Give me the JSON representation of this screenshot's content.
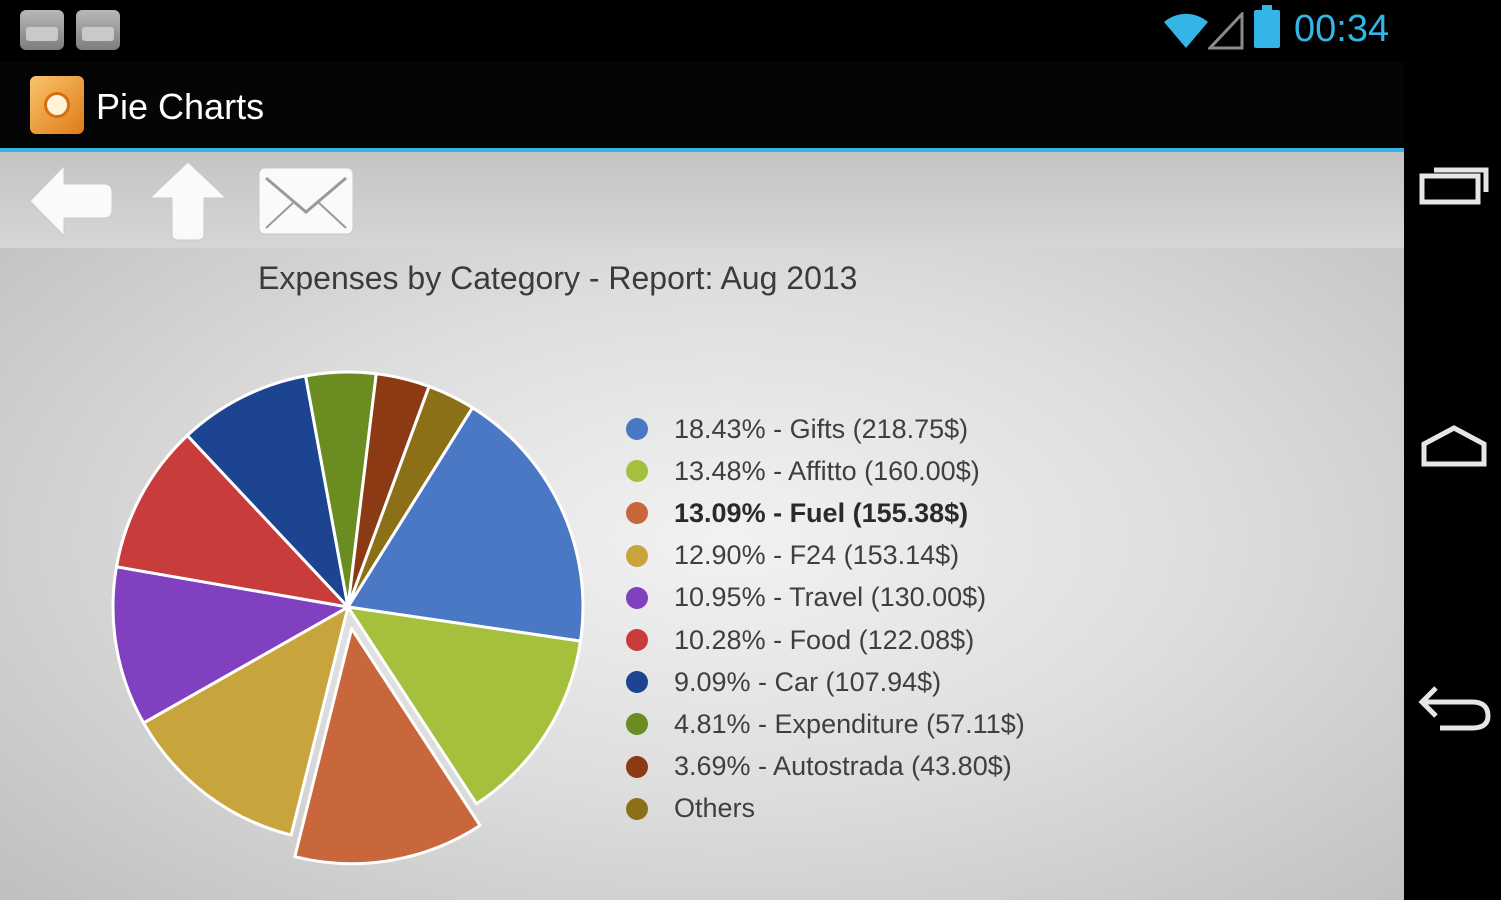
{
  "status_bar": {
    "time": "00:34",
    "icons": [
      "app-notification-icon",
      "app-notification-icon",
      "wifi-icon",
      "signal-icon",
      "battery-icon"
    ]
  },
  "action_bar": {
    "title": "Pie Charts",
    "icon": "app-icon"
  },
  "toolbar": {
    "buttons": [
      "back-arrow-icon",
      "up-arrow-icon",
      "email-icon"
    ]
  },
  "nav_bar": {
    "buttons": [
      "recent-apps-icon",
      "home-icon",
      "back-icon"
    ]
  },
  "colors": {
    "accent": "#33b5e5"
  },
  "chart_data": {
    "type": "pie",
    "title": "Expenses by Category - Report: Aug 2013",
    "exploded_index": 2,
    "legend_position": "right",
    "slices": [
      {
        "label": "18.43% - Gifts (218.75$)",
        "category": "Gifts",
        "percent": 18.43,
        "amount": 218.75,
        "color": "#4a78c4"
      },
      {
        "label": "13.48% - Affitto (160.00$)",
        "category": "Affitto",
        "percent": 13.48,
        "amount": 160.0,
        "color": "#a5c03c"
      },
      {
        "label": "13.09% - Fuel (155.38$)",
        "category": "Fuel",
        "percent": 13.09,
        "amount": 155.38,
        "color": "#c8663c"
      },
      {
        "label": "12.90% - F24 (153.14$)",
        "category": "F24",
        "percent": 12.9,
        "amount": 153.14,
        "color": "#c8a43c"
      },
      {
        "label": "10.95% - Travel (130.00$)",
        "category": "Travel",
        "percent": 10.95,
        "amount": 130.0,
        "color": "#8040c0"
      },
      {
        "label": "10.28% - Food (122.08$)",
        "category": "Food",
        "percent": 10.28,
        "amount": 122.08,
        "color": "#c83c3c"
      },
      {
        "label": "9.09% - Car (107.94$)",
        "category": "Car",
        "percent": 9.09,
        "amount": 107.94,
        "color": "#1c4490"
      },
      {
        "label": "4.81% - Expenditure (57.11$)",
        "category": "Expenditure",
        "percent": 4.81,
        "amount": 57.11,
        "color": "#6a8c20"
      },
      {
        "label": "3.69% - Autostrada (43.80$)",
        "category": "Autostrada",
        "percent": 3.69,
        "amount": 43.8,
        "color": "#8c3a14"
      },
      {
        "label": "Others",
        "category": "Others",
        "percent": 3.28,
        "amount": null,
        "color": "#8c7018"
      }
    ]
  }
}
